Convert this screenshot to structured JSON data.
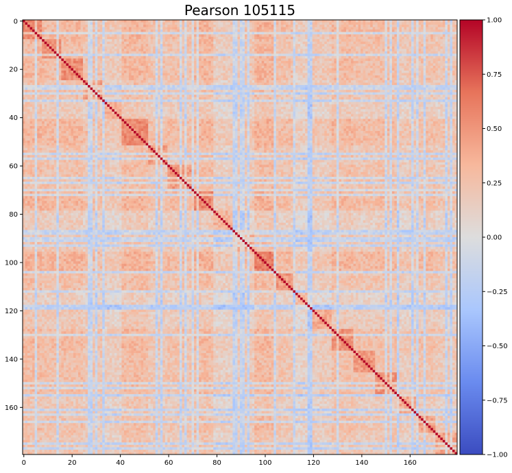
{
  "chart_data": {
    "type": "heatmap",
    "title": "Pearson 105115",
    "xlabel": "",
    "ylabel": "",
    "size": 180,
    "x_ticks": [
      0,
      20,
      40,
      60,
      80,
      100,
      120,
      140,
      160
    ],
    "y_ticks": [
      0,
      20,
      40,
      60,
      80,
      100,
      120,
      140,
      160
    ],
    "colormap": "coolwarm",
    "colormap_stops": [
      "#3b4cc0",
      "#6a8bef",
      "#aac7fd",
      "#dddddd",
      "#f7b89c",
      "#e7745b",
      "#b40426"
    ],
    "vmin": -1.0,
    "vmax": 1.0,
    "colorbar_ticks": [
      "1.00",
      "0.75",
      "0.50",
      "0.25",
      "0.00",
      "−0.25",
      "−0.50",
      "−0.75",
      "−1.00"
    ],
    "colorbar_values": [
      1.0,
      0.75,
      0.5,
      0.25,
      0.0,
      -0.25,
      -0.5,
      -0.75,
      -1.0
    ],
    "diagonal_value": 1.0,
    "block_boundaries": [
      0,
      8,
      16,
      25,
      34,
      41,
      52,
      60,
      70,
      79,
      87,
      96,
      104,
      113,
      120,
      128,
      137,
      146,
      155,
      163,
      171,
      180
    ],
    "block_means": [
      0.45,
      0.35,
      0.4,
      0.25,
      0.1,
      0.45,
      0.25,
      0.3,
      0.45,
      0.05,
      0.2,
      0.5,
      0.3,
      0.0,
      0.15,
      0.4,
      0.3,
      0.35,
      0.15,
      0.3,
      0.2
    ],
    "block_correlation": 0.3,
    "negative_columns": [
      5,
      27,
      33,
      57,
      65,
      72,
      88,
      91,
      93,
      104,
      119,
      150,
      152,
      163,
      175
    ],
    "negative_rows": [
      14,
      28,
      30,
      55,
      67,
      70,
      87,
      90,
      112,
      118,
      130,
      155,
      161,
      166,
      177
    ],
    "cell_noise": 0.12
  }
}
